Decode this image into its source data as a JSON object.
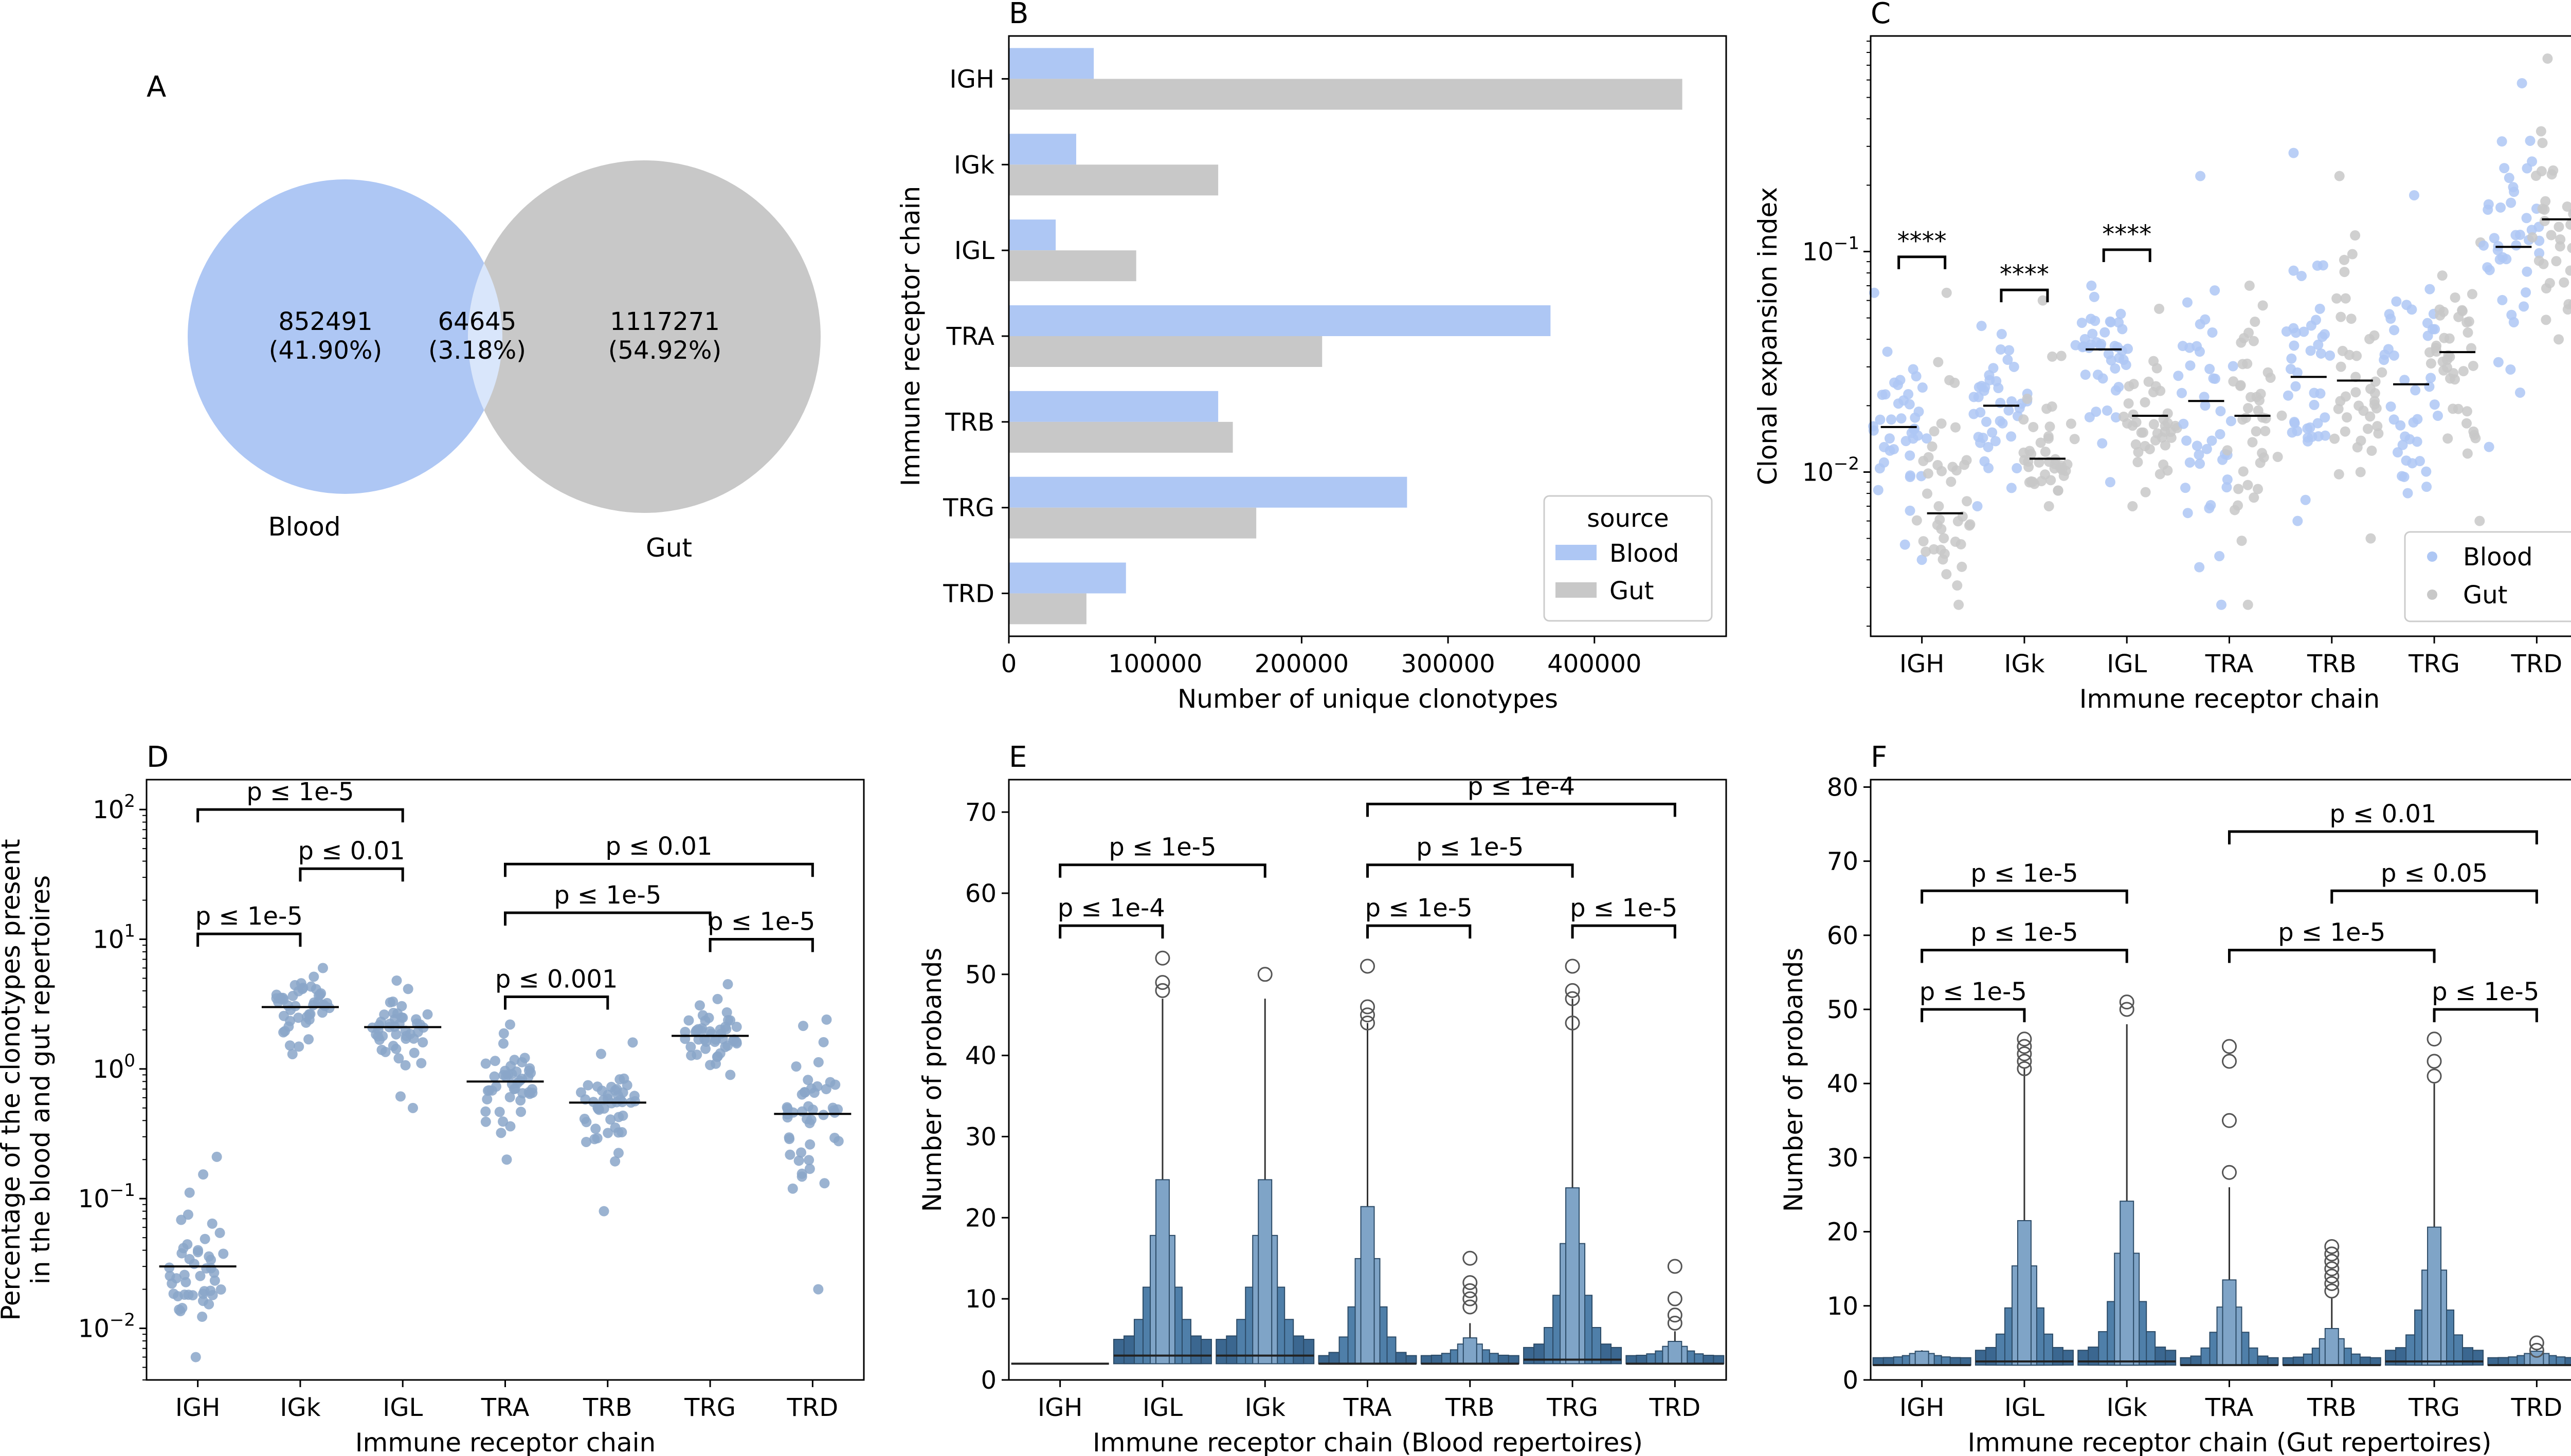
{
  "colors": {
    "blood": "#aec7f4",
    "gut": "#c8c8c8",
    "overlap": "#d9e6fb",
    "swarm": "#8aa6c9",
    "boxen_dark": "#3b6790",
    "boxen_mid": "#4f7fa9",
    "boxen_light": "#7fa4c7"
  },
  "panels": {
    "A": "A",
    "B": "B",
    "C": "C",
    "D": "D",
    "E": "E",
    "F": "F"
  },
  "chart_data": [
    {
      "id": "A",
      "type": "venn",
      "sets": [
        "Blood",
        "Gut"
      ],
      "regions": [
        {
          "set": "Blood only",
          "count": "852491",
          "pct": "(41.90%)"
        },
        {
          "set": "Both",
          "count": "64645",
          "pct": "(3.18%)"
        },
        {
          "set": "Gut only",
          "count": "1117271",
          "pct": "(54.92%)"
        }
      ]
    },
    {
      "id": "B",
      "type": "bar",
      "orientation": "horizontal",
      "categories": [
        "IGH",
        "IGk",
        "IGL",
        "TRA",
        "TRB",
        "TRG",
        "TRD"
      ],
      "series": [
        {
          "name": "Blood",
          "values": [
            58000,
            46000,
            32000,
            370000,
            143000,
            272000,
            80000
          ]
        },
        {
          "name": "Gut",
          "values": [
            460000,
            143000,
            87000,
            214000,
            153000,
            169000,
            53000
          ]
        }
      ],
      "xlabel": "Number of unique clonotypes",
      "ylabel": "Immune receptor chain",
      "xlim": [
        0,
        490000
      ],
      "xticks": [
        "0",
        "100000",
        "200000",
        "300000",
        "400000"
      ],
      "legend": {
        "title": "source",
        "position": "lower-right",
        "entries": [
          "Blood",
          "Gut"
        ]
      }
    },
    {
      "id": "C",
      "type": "scatter",
      "style": "swarm",
      "yscale": "log",
      "ylim": [
        0.0018,
        0.95
      ],
      "categories": [
        "IGH",
        "IGk",
        "IGL",
        "TRA",
        "TRB",
        "TRG",
        "TRD"
      ],
      "series": [
        {
          "name": "Blood",
          "medians": [
            0.016,
            0.02,
            0.036,
            0.021,
            0.027,
            0.025,
            0.105
          ],
          "ranges": [
            [
              0.004,
              0.065
            ],
            [
              0.007,
              0.046
            ],
            [
              0.009,
              0.07
            ],
            [
              0.0025,
              0.22
            ],
            [
              0.006,
              0.28
            ],
            [
              0.0045,
              0.18
            ],
            [
              0.013,
              0.58
            ]
          ]
        },
        {
          "name": "Gut",
          "medians": [
            0.0065,
            0.0115,
            0.018,
            0.018,
            0.026,
            0.035,
            0.14
          ],
          "ranges": [
            [
              0.0025,
              0.065
            ],
            [
              0.007,
              0.06
            ],
            [
              0.007,
              0.055
            ],
            [
              0.0025,
              0.07
            ],
            [
              0.005,
              0.22
            ],
            [
              0.006,
              0.11
            ],
            [
              0.028,
              0.75
            ]
          ]
        }
      ],
      "significance": [
        {
          "category": "IGH",
          "label": "****"
        },
        {
          "category": "IGk",
          "label": "****"
        },
        {
          "category": "IGL",
          "label": "****"
        }
      ],
      "yticks": [
        {
          "value": 0.01,
          "base": "10",
          "exp": "−2"
        },
        {
          "value": 0.1,
          "base": "10",
          "exp": "−1"
        }
      ],
      "xlabel": "Immune receptor chain",
      "ylabel": "Clonal expansion index",
      "legend": {
        "position": "lower-right",
        "entries": [
          "Blood",
          "Gut"
        ]
      }
    },
    {
      "id": "D",
      "type": "scatter",
      "style": "swarm",
      "yscale": "log",
      "ylim": [
        0.004,
        170
      ],
      "categories": [
        "IGH",
        "IGk",
        "IGL",
        "TRA",
        "TRB",
        "TRG",
        "TRD"
      ],
      "medians": [
        0.03,
        3.0,
        2.1,
        0.8,
        0.55,
        1.8,
        0.45
      ],
      "ranges": [
        [
          0.006,
          0.21
        ],
        [
          1.3,
          6.0
        ],
        [
          0.5,
          4.8
        ],
        [
          0.2,
          2.2
        ],
        [
          0.08,
          1.6
        ],
        [
          0.9,
          4.5
        ],
        [
          0.02,
          2.4
        ]
      ],
      "yticks": [
        {
          "value": 0.01,
          "base": "10",
          "exp": "−2"
        },
        {
          "value": 0.1,
          "base": "10",
          "exp": "−1"
        },
        {
          "value": 1,
          "base": "10",
          "exp": "0"
        },
        {
          "value": 10,
          "base": "10",
          "exp": "1"
        },
        {
          "value": 100,
          "base": "10",
          "exp": "2"
        }
      ],
      "brackets": [
        {
          "from": "IGH",
          "to": "IGL",
          "label": "p ≤ 1e-5",
          "level": 100
        },
        {
          "from": "IGk",
          "to": "IGL",
          "label": "p ≤ 0.01",
          "level": 35
        },
        {
          "from": "IGH",
          "to": "IGk",
          "label": "p ≤ 1e-5",
          "level": 11
        },
        {
          "from": "TRA",
          "to": "TRD",
          "label": "p ≤ 0.01",
          "level": 38
        },
        {
          "from": "TRA",
          "to": "TRG",
          "label": "p ≤ 1e-5",
          "level": 16
        },
        {
          "from": "TRA",
          "to": "TRB",
          "label": "p ≤ 0.001",
          "level": 3.6
        },
        {
          "from": "TRG",
          "to": "TRD",
          "label": "p ≤ 1e-5",
          "level": 10
        }
      ],
      "xlabel": "Immune receptor chain",
      "ylabel_lines": [
        "Percentage of the clonotypes present",
        "in the blood and gut repertoires"
      ]
    },
    {
      "id": "E",
      "type": "boxen",
      "categories": [
        "IGH",
        "IGL",
        "IGk",
        "TRA",
        "TRB",
        "TRG",
        "TRD"
      ],
      "medians": [
        2,
        3,
        3,
        2,
        2,
        2.5,
        2
      ],
      "whisker_max": [
        2,
        47,
        47,
        44,
        7,
        47,
        6
      ],
      "outliers": [
        [],
        [
          48,
          49,
          52
        ],
        [
          50
        ],
        [
          44,
          45,
          46,
          51
        ],
        [
          9,
          10,
          11,
          12,
          15
        ],
        [
          44,
          47,
          48,
          51
        ],
        [
          7,
          8,
          10,
          14
        ]
      ],
      "ylim": [
        0,
        74
      ],
      "yticks": [
        0,
        10,
        20,
        30,
        40,
        50,
        60,
        70
      ],
      "brackets": [
        {
          "from": "IGH",
          "to": "IGL",
          "label": "p ≤ 1e-4",
          "level": 56
        },
        {
          "from": "IGH",
          "to": "IGk",
          "label": "p ≤ 1e-5",
          "level": 63.5
        },
        {
          "from": "TRA",
          "to": "TRB",
          "label": "p ≤ 1e-5",
          "level": 56
        },
        {
          "from": "TRA",
          "to": "TRG",
          "label": "p ≤ 1e-5",
          "level": 63.5
        },
        {
          "from": "TRA",
          "to": "TRD",
          "label": "p ≤ 1e-4",
          "level": 71
        },
        {
          "from": "TRG",
          "to": "TRD",
          "label": "p ≤ 1e-5",
          "level": 56
        }
      ],
      "xlabel": "Immune receptor chain (Blood repertoires)",
      "ylabel": "Number of probands"
    },
    {
      "id": "F",
      "type": "boxen",
      "categories": [
        "IGH",
        "IGL",
        "IGk",
        "TRA",
        "TRB",
        "TRG",
        "TRD"
      ],
      "medians": [
        2,
        2.5,
        2.5,
        2,
        2,
        2.5,
        2
      ],
      "whisker_max": [
        4,
        42,
        48,
        26,
        11,
        40,
        4
      ],
      "outliers": [
        [],
        [
          42,
          43,
          44,
          45,
          46
        ],
        [
          50,
          51
        ],
        [
          28,
          35,
          43,
          45
        ],
        [
          12,
          13,
          14,
          15,
          16,
          17,
          18
        ],
        [
          41,
          43,
          46
        ],
        [
          4,
          5
        ]
      ],
      "ylim": [
        0,
        81
      ],
      "yticks": [
        0,
        10,
        20,
        30,
        40,
        50,
        60,
        70,
        80
      ],
      "brackets": [
        {
          "from": "IGH",
          "to": "IGL",
          "label": "p ≤ 1e-5",
          "level": 50
        },
        {
          "from": "IGH",
          "to": "IGk",
          "label": "p ≤ 1e-5",
          "level": 58
        },
        {
          "from": "IGH",
          "to": "IGk",
          "label": "p ≤ 1e-5",
          "level": 66
        },
        {
          "from": "TRA",
          "to": "TRG",
          "label": "p ≤ 1e-5",
          "level": 58
        },
        {
          "from": "TRG",
          "to": "TRD",
          "label": "p ≤ 1e-5",
          "level": 50
        },
        {
          "from": "TRB",
          "to": "TRD",
          "label": "p ≤ 0.05",
          "level": 66
        },
        {
          "from": "TRA",
          "to": "TRD",
          "label": "p ≤ 0.01",
          "level": 74
        }
      ],
      "xlabel": "Immune receptor chain (Gut repertoires)",
      "ylabel": "Number of probands"
    }
  ]
}
